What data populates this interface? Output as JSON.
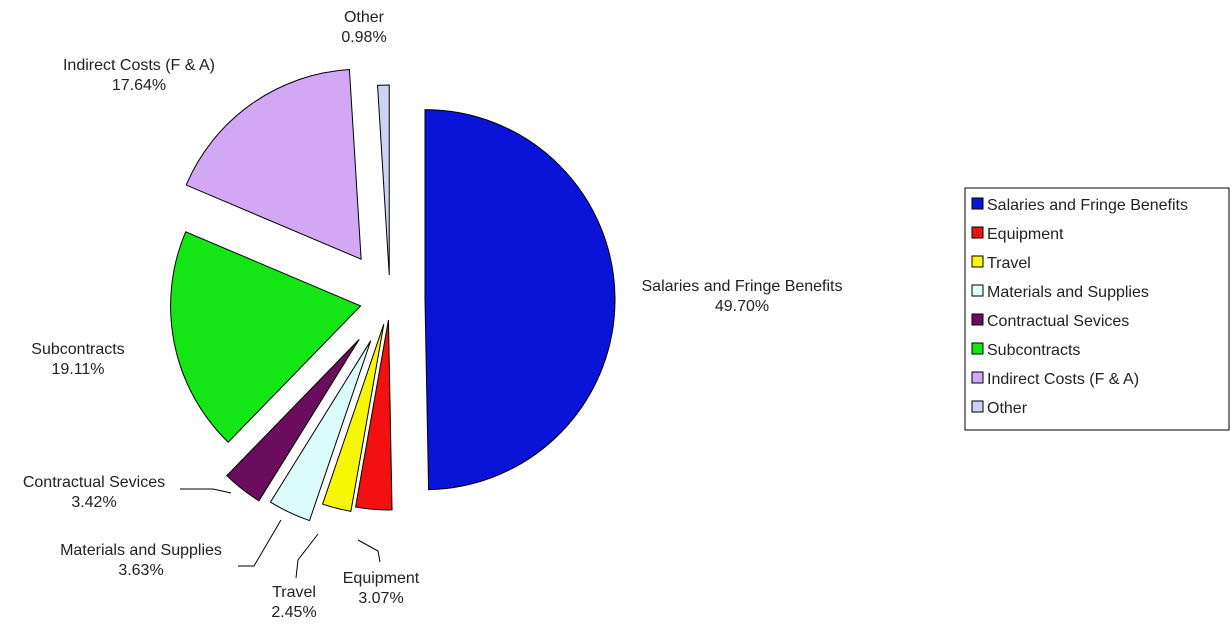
{
  "chart_data": {
    "type": "pie",
    "title": "",
    "exploded": true,
    "legend_position": "right",
    "slices": [
      {
        "name": "Salaries and Fringe Benefits",
        "value": 49.7,
        "label": "49.70%",
        "color": "#0a14d8"
      },
      {
        "name": "Equipment",
        "value": 3.07,
        "label": "3.07%",
        "color": "#f21010"
      },
      {
        "name": "Travel",
        "value": 2.45,
        "label": "2.45%",
        "color": "#f7f705"
      },
      {
        "name": "Materials and Supplies",
        "value": 3.63,
        "label": "3.63%",
        "color": "#dcfbfb"
      },
      {
        "name": "Contractual Sevices",
        "value": 3.42,
        "label": "3.42%",
        "color": "#6b0c5f"
      },
      {
        "name": "Subcontracts",
        "value": 19.11,
        "label": "19.11%",
        "color": "#14e514"
      },
      {
        "name": "Indirect Costs (F & A)",
        "value": 17.64,
        "label": "17.64%",
        "color": "#d2a8f5"
      },
      {
        "name": "Other",
        "value": 0.98,
        "label": "0.98%",
        "color": "#cdd2f2"
      }
    ]
  }
}
